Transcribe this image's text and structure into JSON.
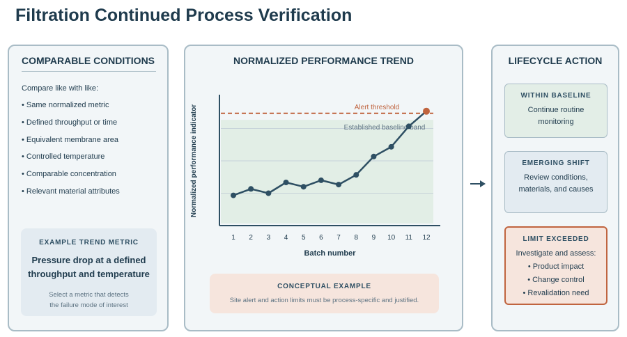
{
  "title": "Filtration Continued Process Verification",
  "left": {
    "heading": "COMPARABLE CONDITIONS",
    "intro": "Compare like with like:",
    "items": [
      "• Same normalized metric",
      "• Defined throughput or time",
      "• Equivalent membrane area",
      "• Controlled temperature",
      "• Comparable concentration",
      "• Relevant material attributes"
    ],
    "example": {
      "heading": "EXAMPLE TREND METRIC",
      "main_line1": "Pressure drop at a defined",
      "main_line2": "throughput and temperature",
      "sub_line1": "Select a metric that detects",
      "sub_line2": "the failure mode of interest"
    }
  },
  "middle": {
    "heading": "NORMALIZED PERFORMANCE TREND",
    "example": {
      "heading": "CONCEPTUAL EXAMPLE",
      "text": "Site alert and action limits must be process-specific and justified."
    }
  },
  "chart_data": {
    "type": "line",
    "title": "",
    "xlabel": "Batch number",
    "ylabel": "Normalized performance indicator",
    "x": [
      1,
      2,
      3,
      4,
      5,
      6,
      7,
      8,
      9,
      10,
      11,
      12
    ],
    "x_tick_labels": [
      "1",
      "2",
      "3",
      "4",
      "5",
      "6",
      "7",
      "8",
      "9",
      "10",
      "11",
      "12"
    ],
    "values": [
      0.28,
      0.34,
      0.3,
      0.4,
      0.36,
      0.42,
      0.38,
      0.47,
      0.64,
      0.73,
      0.92,
      1.06
    ],
    "ylim": [
      0,
      1.2
    ],
    "y_ticks_shown": false,
    "threshold": {
      "label": "Alert threshold",
      "value": 1.04,
      "color": "#c0643f"
    },
    "band": {
      "label": "Established baseline band",
      "range": [
        0.02,
        0.98
      ],
      "color": "#e2eee6"
    },
    "grid_values": [
      0.3,
      0.6,
      0.9
    ],
    "line_color": "#2e4f63",
    "highlight_last_point_color": "#c0643f"
  },
  "right": {
    "heading": "LIFECYCLE ACTION",
    "within": {
      "heading": "WITHIN BASELINE",
      "line1": "Continue routine",
      "line2": "monitoring"
    },
    "shift": {
      "heading": "EMERGING SHIFT",
      "line1": "Review conditions,",
      "line2": "materials, and causes"
    },
    "limit": {
      "heading": "LIMIT EXCEEDED",
      "line1": "Investigate and assess:",
      "line2": "• Product impact",
      "line3": "• Change control",
      "line4": "• Revalidation need"
    }
  },
  "colors": {
    "primary": "#1f3b4d",
    "panel_border": "#a9bcc6",
    "panel_bg": "#f2f6f8",
    "accent": "#c0643f",
    "baseline_band": "#e2eee6"
  }
}
